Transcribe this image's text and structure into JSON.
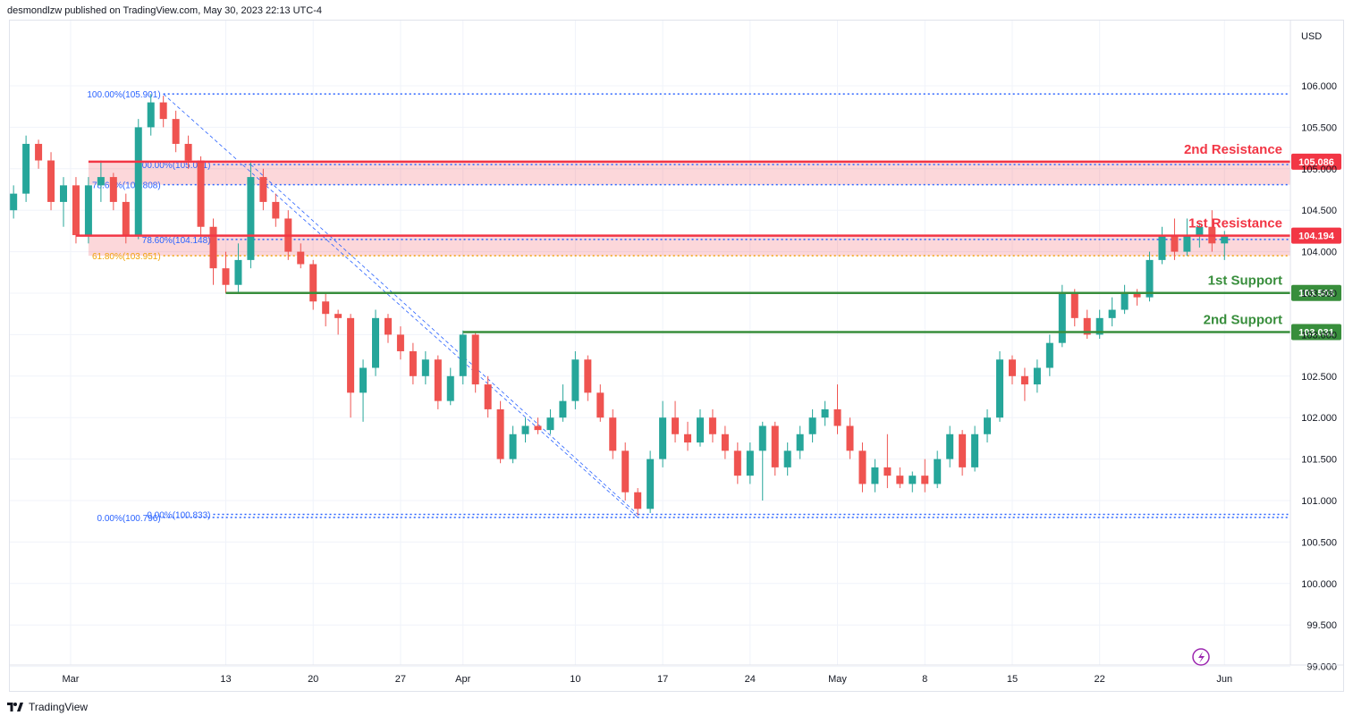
{
  "header": {
    "publisher": "desmondlzw published on TradingView.com, May 30, 2023 22:13 UTC-4"
  },
  "footer": {
    "brand": "TradingView"
  },
  "chart_data": {
    "type": "candlestick",
    "currency": "USD",
    "ylim": [
      99.0,
      106.45
    ],
    "y_ticks": [
      "99.000",
      "99.500",
      "100.000",
      "100.500",
      "101.000",
      "101.500",
      "102.000",
      "102.500",
      "103.000",
      "103.500",
      "104.000",
      "104.500",
      "105.000",
      "105.500",
      "106.000"
    ],
    "x_ticks": [
      {
        "label": "Mar",
        "day": 1
      },
      {
        "label": "13",
        "day": 13
      },
      {
        "label": "20",
        "day": 20
      },
      {
        "label": "27",
        "day": 27
      },
      {
        "label": "Apr",
        "day": 32
      },
      {
        "label": "10",
        "day": 41
      },
      {
        "label": "17",
        "day": 48
      },
      {
        "label": "24",
        "day": 55
      },
      {
        "label": "May",
        "day": 62
      },
      {
        "label": "8",
        "day": 69
      },
      {
        "label": "15",
        "day": 76
      },
      {
        "label": "22",
        "day": 83
      },
      {
        "label": "Jun",
        "day": 93
      }
    ],
    "levels": [
      {
        "name": "2nd Resistance",
        "value": 105.086,
        "label": "105.086",
        "color": "#f23645"
      },
      {
        "name": "1st Resistance",
        "value": 104.194,
        "label": "104.194",
        "color": "#f23645"
      },
      {
        "name": "1st Support",
        "value": 103.503,
        "label": "103.503",
        "color": "#388e3c"
      },
      {
        "name": "2nd Support",
        "value": 103.031,
        "label": "103.031",
        "color": "#388e3c"
      }
    ],
    "zones": [
      {
        "from": 104.808,
        "to": 105.086,
        "color": "#f23645"
      },
      {
        "from": 103.951,
        "to": 104.194,
        "color": "#f23645"
      }
    ],
    "fib_lines": [
      {
        "label": "100.00%(105.901)",
        "value": 105.901,
        "color": "#2962ff",
        "from_day": 8
      },
      {
        "label": "100.00%(105.051)",
        "value": 105.051,
        "color": "#2962ff",
        "from_day": 12
      },
      {
        "label": "78.60%(104.808)",
        "value": 104.808,
        "color": "#2962ff",
        "from_day": 8
      },
      {
        "label": "78.60%(104.148)",
        "value": 104.148,
        "color": "#2962ff",
        "from_day": 12
      },
      {
        "label": "61.80%(103.951)",
        "value": 103.951,
        "color": "#f0a30a",
        "from_day": 8
      },
      {
        "label": "0.00%(100.796)",
        "value": 100.796,
        "color": "#2962ff",
        "from_day": 8
      },
      {
        "label": "0.00%(100.833)",
        "value": 100.833,
        "color": "#2962ff",
        "from_day": 12
      }
    ],
    "trend_lines": [
      {
        "from": {
          "day": 8,
          "value": 105.901
        },
        "to": {
          "day": 46,
          "value": 100.796
        }
      },
      {
        "from": {
          "day": 15,
          "value": 105.051
        },
        "to": {
          "day": 46,
          "value": 100.833
        }
      }
    ],
    "candles": [
      {
        "d": -4,
        "o": 104.5,
        "h": 104.8,
        "l": 104.4,
        "c": 104.7
      },
      {
        "d": -3,
        "o": 104.7,
        "h": 105.4,
        "l": 104.6,
        "c": 105.3
      },
      {
        "d": -2,
        "o": 105.3,
        "h": 105.35,
        "l": 105.0,
        "c": 105.1
      },
      {
        "d": -1,
        "o": 105.1,
        "h": 105.2,
        "l": 104.5,
        "c": 104.6
      },
      {
        "d": 0,
        "o": 104.6,
        "h": 104.9,
        "l": 104.3,
        "c": 104.8
      },
      {
        "d": 1,
        "o": 104.8,
        "h": 104.9,
        "l": 104.1,
        "c": 104.2
      },
      {
        "d": 2,
        "o": 104.2,
        "h": 104.9,
        "l": 104.1,
        "c": 104.8
      },
      {
        "d": 3,
        "o": 104.8,
        "h": 105.1,
        "l": 104.6,
        "c": 104.9
      },
      {
        "d": 4,
        "o": 104.9,
        "h": 104.95,
        "l": 104.5,
        "c": 104.6
      },
      {
        "d": 5,
        "o": 104.6,
        "h": 104.7,
        "l": 104.1,
        "c": 104.2
      },
      {
        "d": 6,
        "o": 104.2,
        "h": 105.6,
        "l": 104.15,
        "c": 105.5
      },
      {
        "d": 7,
        "o": 105.5,
        "h": 105.9,
        "l": 105.4,
        "c": 105.8
      },
      {
        "d": 8,
        "o": 105.8,
        "h": 105.88,
        "l": 105.5,
        "c": 105.6
      },
      {
        "d": 9,
        "o": 105.6,
        "h": 105.7,
        "l": 105.2,
        "c": 105.3
      },
      {
        "d": 10,
        "o": 105.3,
        "h": 105.4,
        "l": 105.0,
        "c": 105.1
      },
      {
        "d": 11,
        "o": 105.1,
        "h": 105.15,
        "l": 104.2,
        "c": 104.3
      },
      {
        "d": 12,
        "o": 104.3,
        "h": 104.4,
        "l": 103.6,
        "c": 103.8
      },
      {
        "d": 13,
        "o": 103.8,
        "h": 104.0,
        "l": 103.5,
        "c": 103.6
      },
      {
        "d": 14,
        "o": 103.6,
        "h": 104.1,
        "l": 103.5,
        "c": 103.9
      },
      {
        "d": 15,
        "o": 103.9,
        "h": 105.1,
        "l": 103.8,
        "c": 104.9
      },
      {
        "d": 16,
        "o": 104.9,
        "h": 105.0,
        "l": 104.5,
        "c": 104.6
      },
      {
        "d": 17,
        "o": 104.6,
        "h": 104.7,
        "l": 104.3,
        "c": 104.4
      },
      {
        "d": 18,
        "o": 104.4,
        "h": 104.5,
        "l": 103.9,
        "c": 104.0
      },
      {
        "d": 19,
        "o": 104.0,
        "h": 104.1,
        "l": 103.8,
        "c": 103.85
      },
      {
        "d": 20,
        "o": 103.85,
        "h": 103.9,
        "l": 103.3,
        "c": 103.4
      },
      {
        "d": 21,
        "o": 103.4,
        "h": 103.5,
        "l": 103.1,
        "c": 103.25
      },
      {
        "d": 22,
        "o": 103.25,
        "h": 103.3,
        "l": 103.0,
        "c": 103.2
      },
      {
        "d": 23,
        "o": 103.2,
        "h": 103.25,
        "l": 102.0,
        "c": 102.3
      },
      {
        "d": 24,
        "o": 102.3,
        "h": 102.7,
        "l": 101.95,
        "c": 102.6
      },
      {
        "d": 25,
        "o": 102.6,
        "h": 103.3,
        "l": 102.5,
        "c": 103.2
      },
      {
        "d": 26,
        "o": 103.2,
        "h": 103.25,
        "l": 102.9,
        "c": 103.0
      },
      {
        "d": 27,
        "o": 103.0,
        "h": 103.1,
        "l": 102.7,
        "c": 102.8
      },
      {
        "d": 28,
        "o": 102.8,
        "h": 102.9,
        "l": 102.4,
        "c": 102.5
      },
      {
        "d": 29,
        "o": 102.5,
        "h": 102.8,
        "l": 102.4,
        "c": 102.7
      },
      {
        "d": 30,
        "o": 102.7,
        "h": 102.75,
        "l": 102.1,
        "c": 102.2
      },
      {
        "d": 31,
        "o": 102.2,
        "h": 102.6,
        "l": 102.15,
        "c": 102.5
      },
      {
        "d": 32,
        "o": 102.5,
        "h": 103.05,
        "l": 102.4,
        "c": 103.0
      },
      {
        "d": 33,
        "o": 103.0,
        "h": 103.02,
        "l": 102.3,
        "c": 102.4
      },
      {
        "d": 34,
        "o": 102.4,
        "h": 102.5,
        "l": 102.0,
        "c": 102.1
      },
      {
        "d": 35,
        "o": 102.1,
        "h": 102.2,
        "l": 101.45,
        "c": 101.5
      },
      {
        "d": 36,
        "o": 101.5,
        "h": 101.9,
        "l": 101.45,
        "c": 101.8
      },
      {
        "d": 37,
        "o": 101.8,
        "h": 102.0,
        "l": 101.7,
        "c": 101.9
      },
      {
        "d": 38,
        "o": 101.9,
        "h": 102.0,
        "l": 101.8,
        "c": 101.85
      },
      {
        "d": 39,
        "o": 101.85,
        "h": 102.1,
        "l": 101.8,
        "c": 102.0
      },
      {
        "d": 40,
        "o": 102.0,
        "h": 102.4,
        "l": 101.95,
        "c": 102.2
      },
      {
        "d": 41,
        "o": 102.2,
        "h": 102.8,
        "l": 102.1,
        "c": 102.7
      },
      {
        "d": 42,
        "o": 102.7,
        "h": 102.75,
        "l": 102.2,
        "c": 102.3
      },
      {
        "d": 43,
        "o": 102.3,
        "h": 102.4,
        "l": 101.95,
        "c": 102.0
      },
      {
        "d": 44,
        "o": 102.0,
        "h": 102.1,
        "l": 101.5,
        "c": 101.6
      },
      {
        "d": 45,
        "o": 101.6,
        "h": 101.7,
        "l": 101.0,
        "c": 101.1
      },
      {
        "d": 46,
        "o": 101.1,
        "h": 101.15,
        "l": 100.82,
        "c": 100.9
      },
      {
        "d": 47,
        "o": 100.9,
        "h": 101.6,
        "l": 100.85,
        "c": 101.5
      },
      {
        "d": 48,
        "o": 101.5,
        "h": 102.2,
        "l": 101.4,
        "c": 102.0
      },
      {
        "d": 49,
        "o": 102.0,
        "h": 102.2,
        "l": 101.7,
        "c": 101.8
      },
      {
        "d": 50,
        "o": 101.8,
        "h": 101.95,
        "l": 101.6,
        "c": 101.7
      },
      {
        "d": 51,
        "o": 101.7,
        "h": 102.1,
        "l": 101.65,
        "c": 102.0
      },
      {
        "d": 52,
        "o": 102.0,
        "h": 102.1,
        "l": 101.7,
        "c": 101.8
      },
      {
        "d": 53,
        "o": 101.8,
        "h": 101.9,
        "l": 101.5,
        "c": 101.6
      },
      {
        "d": 54,
        "o": 101.6,
        "h": 101.7,
        "l": 101.2,
        "c": 101.3
      },
      {
        "d": 55,
        "o": 101.3,
        "h": 101.7,
        "l": 101.2,
        "c": 101.6
      },
      {
        "d": 56,
        "o": 101.6,
        "h": 101.95,
        "l": 101.0,
        "c": 101.9
      },
      {
        "d": 57,
        "o": 101.9,
        "h": 101.95,
        "l": 101.3,
        "c": 101.4
      },
      {
        "d": 58,
        "o": 101.4,
        "h": 101.7,
        "l": 101.3,
        "c": 101.6
      },
      {
        "d": 59,
        "o": 101.6,
        "h": 101.9,
        "l": 101.5,
        "c": 101.8
      },
      {
        "d": 60,
        "o": 101.8,
        "h": 102.1,
        "l": 101.7,
        "c": 102.0
      },
      {
        "d": 61,
        "o": 102.0,
        "h": 102.2,
        "l": 101.9,
        "c": 102.1
      },
      {
        "d": 62,
        "o": 102.1,
        "h": 102.4,
        "l": 101.8,
        "c": 101.9
      },
      {
        "d": 63,
        "o": 101.9,
        "h": 102.0,
        "l": 101.5,
        "c": 101.6
      },
      {
        "d": 64,
        "o": 101.6,
        "h": 101.7,
        "l": 101.1,
        "c": 101.2
      },
      {
        "d": 65,
        "o": 101.2,
        "h": 101.5,
        "l": 101.1,
        "c": 101.4
      },
      {
        "d": 66,
        "o": 101.4,
        "h": 101.8,
        "l": 101.15,
        "c": 101.3
      },
      {
        "d": 67,
        "o": 101.3,
        "h": 101.4,
        "l": 101.15,
        "c": 101.2
      },
      {
        "d": 68,
        "o": 101.2,
        "h": 101.35,
        "l": 101.1,
        "c": 101.3
      },
      {
        "d": 69,
        "o": 101.3,
        "h": 101.5,
        "l": 101.1,
        "c": 101.2
      },
      {
        "d": 70,
        "o": 101.2,
        "h": 101.6,
        "l": 101.15,
        "c": 101.5
      },
      {
        "d": 71,
        "o": 101.5,
        "h": 101.9,
        "l": 101.4,
        "c": 101.8
      },
      {
        "d": 72,
        "o": 101.8,
        "h": 101.85,
        "l": 101.3,
        "c": 101.4
      },
      {
        "d": 73,
        "o": 101.4,
        "h": 101.9,
        "l": 101.35,
        "c": 101.8
      },
      {
        "d": 74,
        "o": 101.8,
        "h": 102.1,
        "l": 101.7,
        "c": 102.0
      },
      {
        "d": 75,
        "o": 102.0,
        "h": 102.8,
        "l": 101.95,
        "c": 102.7
      },
      {
        "d": 76,
        "o": 102.7,
        "h": 102.75,
        "l": 102.4,
        "c": 102.5
      },
      {
        "d": 77,
        "o": 102.5,
        "h": 102.6,
        "l": 102.2,
        "c": 102.4
      },
      {
        "d": 78,
        "o": 102.4,
        "h": 102.7,
        "l": 102.3,
        "c": 102.6
      },
      {
        "d": 79,
        "o": 102.6,
        "h": 103.0,
        "l": 102.5,
        "c": 102.9
      },
      {
        "d": 80,
        "o": 102.9,
        "h": 103.6,
        "l": 102.85,
        "c": 103.5
      },
      {
        "d": 81,
        "o": 103.5,
        "h": 103.55,
        "l": 103.1,
        "c": 103.2
      },
      {
        "d": 82,
        "o": 103.2,
        "h": 103.3,
        "l": 102.95,
        "c": 103.0
      },
      {
        "d": 83,
        "o": 103.0,
        "h": 103.3,
        "l": 102.95,
        "c": 103.2
      },
      {
        "d": 84,
        "o": 103.2,
        "h": 103.45,
        "l": 103.1,
        "c": 103.3
      },
      {
        "d": 85,
        "o": 103.3,
        "h": 103.6,
        "l": 103.25,
        "c": 103.5
      },
      {
        "d": 86,
        "o": 103.5,
        "h": 103.55,
        "l": 103.35,
        "c": 103.45
      },
      {
        "d": 87,
        "o": 103.45,
        "h": 104.0,
        "l": 103.4,
        "c": 103.9
      },
      {
        "d": 88,
        "o": 103.9,
        "h": 104.3,
        "l": 103.85,
        "c": 104.2
      },
      {
        "d": 89,
        "o": 104.2,
        "h": 104.4,
        "l": 103.9,
        "c": 104.0
      },
      {
        "d": 90,
        "o": 104.0,
        "h": 104.4,
        "l": 103.95,
        "c": 104.2
      },
      {
        "d": 91,
        "o": 104.2,
        "h": 104.35,
        "l": 104.05,
        "c": 104.3
      },
      {
        "d": 92,
        "o": 104.3,
        "h": 104.5,
        "l": 104.0,
        "c": 104.1
      },
      {
        "d": 93,
        "o": 104.1,
        "h": 104.25,
        "l": 103.9,
        "c": 104.2
      }
    ]
  }
}
